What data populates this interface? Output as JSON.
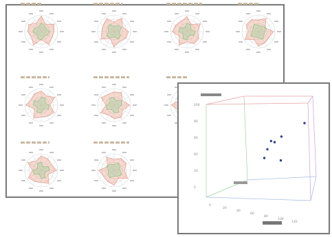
{
  "radar_window": {
    "radars": 10
  },
  "scatter_window": {
    "y_ticks": [
      "100",
      "80",
      "60",
      "40",
      "20",
      "0"
    ],
    "x_ticks": [
      "0",
      "20",
      "40",
      "60",
      "80",
      "100",
      "120"
    ],
    "points": [
      {
        "x": 0.55,
        "y": 0.55,
        "z": 0.45
      },
      {
        "x": 0.62,
        "y": 0.62,
        "z": 0.5
      },
      {
        "x": 0.5,
        "y": 0.47,
        "z": 0.3
      },
      {
        "x": 0.45,
        "y": 0.35,
        "z": 0.35
      },
      {
        "x": 0.6,
        "y": 0.3,
        "z": 0.55
      },
      {
        "x": 0.85,
        "y": 0.78,
        "z": 0.7
      },
      {
        "x": 0.52,
        "y": 0.57,
        "z": 0.4
      }
    ]
  }
}
